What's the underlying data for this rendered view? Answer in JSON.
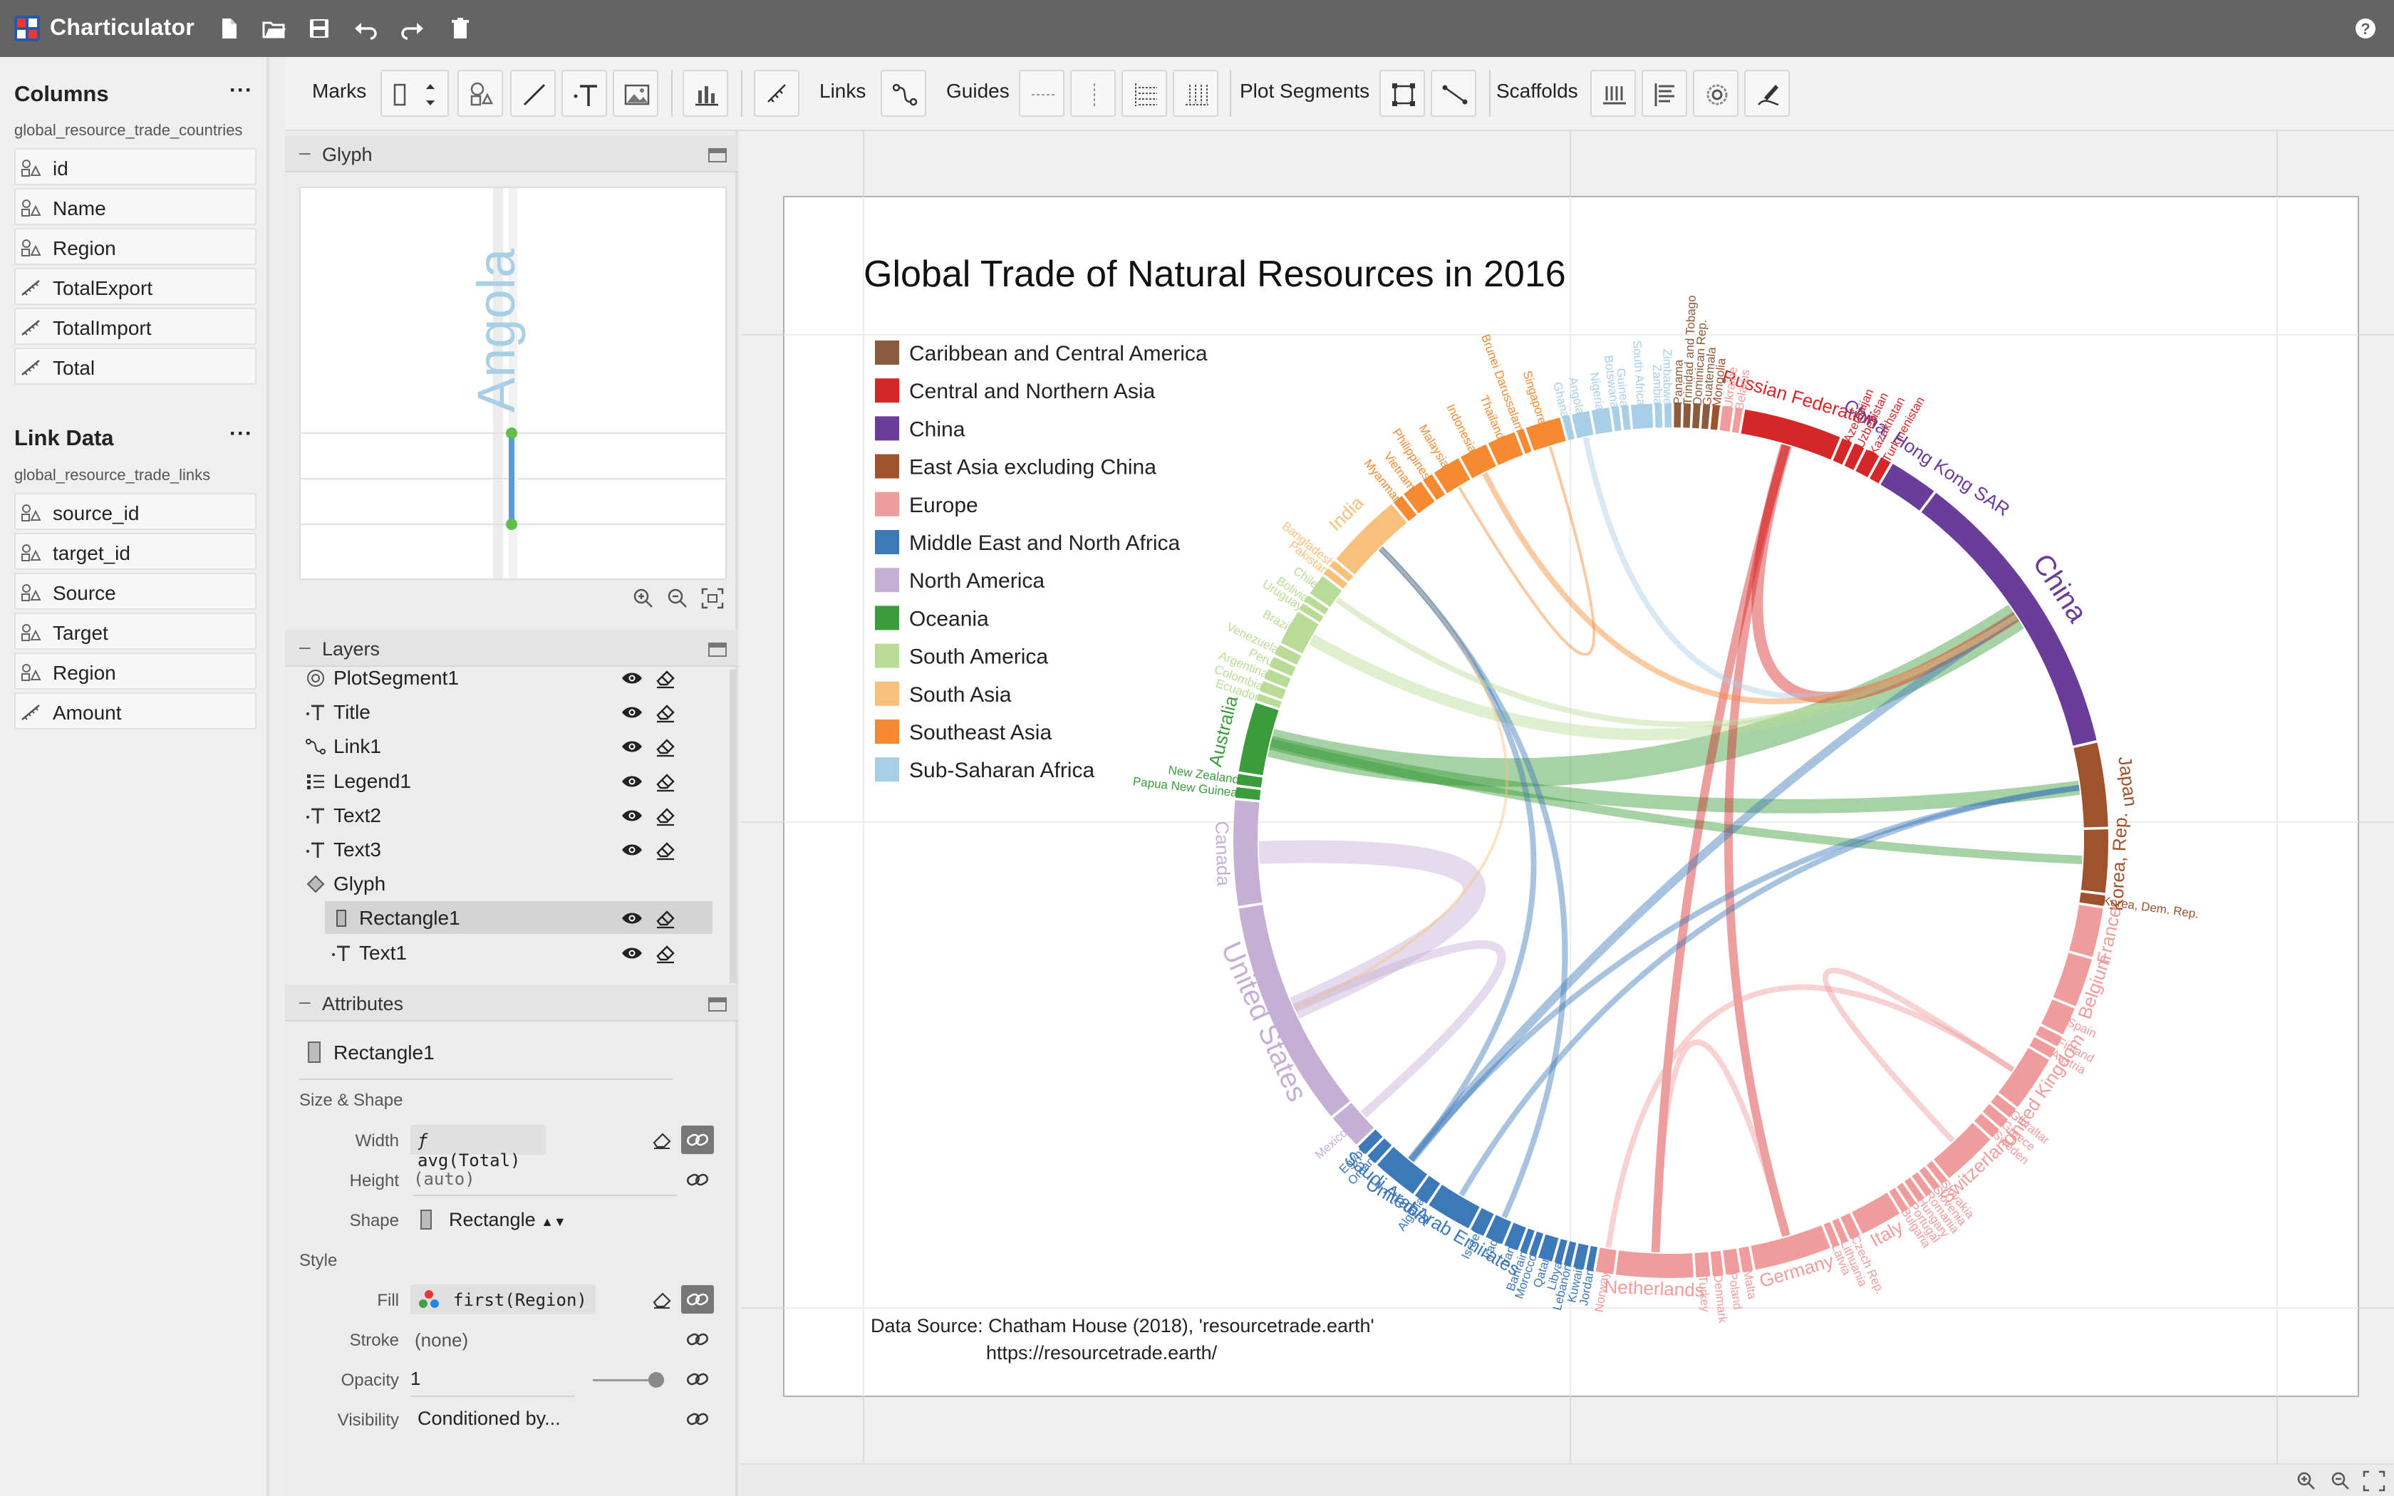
{
  "app": {
    "title": "Charticulator"
  },
  "toolbar": {
    "marks_label": "Marks",
    "links_label": "Links",
    "guides_label": "Guides",
    "plot_segments_label": "Plot Segments",
    "scaffolds_label": "Scaffolds"
  },
  "columns_panel": {
    "title": "Columns",
    "menu": "···",
    "table_name": "global_resource_trade_countries",
    "fields": [
      {
        "name": "id",
        "kind": "categorical"
      },
      {
        "name": "Name",
        "kind": "categorical"
      },
      {
        "name": "Region",
        "kind": "categorical"
      },
      {
        "name": "TotalExport",
        "kind": "numerical"
      },
      {
        "name": "TotalImport",
        "kind": "numerical"
      },
      {
        "name": "Total",
        "kind": "numerical"
      }
    ]
  },
  "link_panel": {
    "title": "Link Data",
    "menu": "···",
    "table_name": "global_resource_trade_links",
    "fields": [
      {
        "name": "source_id",
        "kind": "categorical"
      },
      {
        "name": "target_id",
        "kind": "categorical"
      },
      {
        "name": "Source",
        "kind": "categorical"
      },
      {
        "name": "Target",
        "kind": "categorical"
      },
      {
        "name": "Region",
        "kind": "categorical"
      },
      {
        "name": "Amount",
        "kind": "numerical"
      }
    ]
  },
  "glyph_panel": {
    "title": "Glyph",
    "preview_text": "Angola"
  },
  "layers_panel": {
    "title": "Layers",
    "items": [
      {
        "name": "PlotSegment1",
        "icon": "plot-segment-icon"
      },
      {
        "name": "Title",
        "icon": "text-icon"
      },
      {
        "name": "Link1",
        "icon": "link-icon"
      },
      {
        "name": "Legend1",
        "icon": "legend-icon"
      },
      {
        "name": "Text2",
        "icon": "text-icon"
      },
      {
        "name": "Text3",
        "icon": "text-icon"
      },
      {
        "name": "Glyph",
        "icon": "glyph-icon"
      },
      {
        "name": "Rectangle1",
        "icon": "rectangle-icon",
        "selected": true
      },
      {
        "name": "Text1",
        "icon": "text-icon"
      }
    ]
  },
  "attributes_panel": {
    "title": "Attributes",
    "object": "Rectangle1",
    "size_shape_label": "Size & Shape",
    "width_label": "Width",
    "width_value": "avg(Total)",
    "height_label": "Height",
    "height_value": "(auto)",
    "shape_label": "Shape",
    "shape_value": "Rectangle",
    "style_label": "Style",
    "fill_label": "Fill",
    "fill_value": "first(Region)",
    "stroke_label": "Stroke",
    "stroke_value": "(none)",
    "opacity_label": "Opacity",
    "opacity_value": "1",
    "visibility_label": "Visibility",
    "visibility_value": "Conditioned by..."
  },
  "chart": {
    "title": "Global Trade of Natural Resources in 2016",
    "source_line1": "Data Source: Chatham House (2018), 'resourcetrade.earth'",
    "source_line2": "https://resourcetrade.earth/"
  },
  "chart_data": {
    "type": "chord",
    "title": "Global Trade of Natural Resources in 2016",
    "legend": [
      {
        "name": "Caribbean and Central America",
        "color": "#8c5a3c"
      },
      {
        "name": "Central and Northern Asia",
        "color": "#d62728"
      },
      {
        "name": "China",
        "color": "#6a3d9a"
      },
      {
        "name": "East Asia excluding China",
        "color": "#a0522d"
      },
      {
        "name": "Europe",
        "color": "#f09c9c"
      },
      {
        "name": "Middle East and North Africa",
        "color": "#3d79b8"
      },
      {
        "name": "North America",
        "color": "#c5b0d5"
      },
      {
        "name": "Oceania",
        "color": "#3a9c3a"
      },
      {
        "name": "South America",
        "color": "#b8dc96"
      },
      {
        "name": "South Asia",
        "color": "#f9c07c"
      },
      {
        "name": "Southeast Asia",
        "color": "#f58a32"
      },
      {
        "name": "Sub-Saharan Africa",
        "color": "#a9cfe6"
      }
    ],
    "nodes": [
      {
        "name": "Russian Federation",
        "region": "Central and Northern Asia",
        "size": 2.8
      },
      {
        "name": "Azerbaijan",
        "region": "Central and Northern Asia",
        "size": 0.3
      },
      {
        "name": "Uzbekistan",
        "region": "Central and Northern Asia",
        "size": 0.3
      },
      {
        "name": "Kazakhstan",
        "region": "Central and Northern Asia",
        "size": 0.4
      },
      {
        "name": "Turkmenistan",
        "region": "Central and Northern Asia",
        "size": 0.3
      },
      {
        "name": "China, Hong Kong SAR",
        "region": "China",
        "size": 1.4
      },
      {
        "name": "China",
        "region": "China",
        "size": 8.5
      },
      {
        "name": "Japan",
        "region": "East Asia excluding China",
        "size": 2.4
      },
      {
        "name": "Korea, Rep.",
        "region": "East Asia excluding China",
        "size": 1.8
      },
      {
        "name": "Korea, Dem. Rep.",
        "region": "East Asia excluding China",
        "size": 0.3
      },
      {
        "name": "France",
        "region": "Europe",
        "size": 1.4
      },
      {
        "name": "Belgium",
        "region": "Europe",
        "size": 1.4
      },
      {
        "name": "Spain",
        "region": "Europe",
        "size": 0.8
      },
      {
        "name": "Finland",
        "region": "Europe",
        "size": 0.3
      },
      {
        "name": "Austria",
        "region": "Europe",
        "size": 0.3
      },
      {
        "name": "United Kingdom",
        "region": "Europe",
        "size": 1.6
      },
      {
        "name": "Gibraltar",
        "region": "Europe",
        "size": 0.3
      },
      {
        "name": "Greece",
        "region": "Europe",
        "size": 0.3
      },
      {
        "name": "Sweden",
        "region": "Europe",
        "size": 0.3
      },
      {
        "name": "Switzerland",
        "region": "Europe",
        "size": 1.6
      },
      {
        "name": "Slovakia",
        "region": "Europe",
        "size": 0.2
      },
      {
        "name": "Slovenia",
        "region": "Europe",
        "size": 0.2
      },
      {
        "name": "Romania",
        "region": "Europe",
        "size": 0.2
      },
      {
        "name": "Hungary",
        "region": "Europe",
        "size": 0.2
      },
      {
        "name": "Portugal",
        "region": "Europe",
        "size": 0.2
      },
      {
        "name": "Bulgaria",
        "region": "Europe",
        "size": 0.2
      },
      {
        "name": "Italy",
        "region": "Europe",
        "size": 1.2
      },
      {
        "name": "Czech Rep.",
        "region": "Europe",
        "size": 0.3
      },
      {
        "name": "Lithuania",
        "region": "Europe",
        "size": 0.2
      },
      {
        "name": "Latvia",
        "region": "Europe",
        "size": 0.2
      },
      {
        "name": "Germany",
        "region": "Europe",
        "size": 2.2
      },
      {
        "name": "Malta",
        "region": "Europe",
        "size": 0.3
      },
      {
        "name": "Poland",
        "region": "Europe",
        "size": 0.4
      },
      {
        "name": "Denmark",
        "region": "Europe",
        "size": 0.3
      },
      {
        "name": "Turkey",
        "region": "Europe",
        "size": 0.4
      },
      {
        "name": "Netherlands",
        "region": "Europe",
        "size": 2.2
      },
      {
        "name": "Norway",
        "region": "Europe",
        "size": 0.5
      },
      {
        "name": "Jordan",
        "region": "Middle East and North Africa",
        "size": 0.2
      },
      {
        "name": "Kuwait",
        "region": "Middle East and North Africa",
        "size": 0.3
      },
      {
        "name": "Lebanon",
        "region": "Middle East and North Africa",
        "size": 0.2
      },
      {
        "name": "Libya",
        "region": "Middle East and North Africa",
        "size": 0.2
      },
      {
        "name": "Qatar",
        "region": "Middle East and North Africa",
        "size": 0.4
      },
      {
        "name": "Morocco",
        "region": "Middle East and North Africa",
        "size": 0.2
      },
      {
        "name": "Bahrain",
        "region": "Middle East and North Africa",
        "size": 0.2
      },
      {
        "name": "Iran",
        "region": "Middle East and North Africa",
        "size": 0.4
      },
      {
        "name": "Iraq",
        "region": "Middle East and North Africa",
        "size": 0.5
      },
      {
        "name": "Israel",
        "region": "Middle East and North Africa",
        "size": 0.4
      },
      {
        "name": "United Arab Emirates",
        "region": "Middle East and North Africa",
        "size": 1.3
      },
      {
        "name": "Algeria",
        "region": "Middle East and North Africa",
        "size": 0.4
      },
      {
        "name": "Saudi Arabia",
        "region": "Middle East and North Africa",
        "size": 1.3
      },
      {
        "name": "Oman",
        "region": "Middle East and North Africa",
        "size": 0.3
      },
      {
        "name": "Egypt",
        "region": "Middle East and North Africa",
        "size": 0.3
      },
      {
        "name": "Mexico",
        "region": "North America",
        "size": 1.0
      },
      {
        "name": "United States",
        "region": "North America",
        "size": 6.5
      },
      {
        "name": "Canada",
        "region": "North America",
        "size": 3.0
      },
      {
        "name": "Papua New Guinea",
        "region": "Oceania",
        "size": 0.3
      },
      {
        "name": "New Zealand",
        "region": "Oceania",
        "size": 0.3
      },
      {
        "name": "Australia",
        "region": "Oceania",
        "size": 2.0
      },
      {
        "name": "Ecuador",
        "region": "South America",
        "size": 0.2
      },
      {
        "name": "Colombia",
        "region": "South America",
        "size": 0.3
      },
      {
        "name": "Argentina",
        "region": "South America",
        "size": 0.3
      },
      {
        "name": "Peru",
        "region": "South America",
        "size": 0.3
      },
      {
        "name": "Venezuela",
        "region": "South America",
        "size": 0.3
      },
      {
        "name": "Brazil",
        "region": "South America",
        "size": 1.0
      },
      {
        "name": "Uruguay",
        "region": "South America",
        "size": 0.2
      },
      {
        "name": "Bolivia",
        "region": "South America",
        "size": 0.2
      },
      {
        "name": "Chile",
        "region": "South America",
        "size": 0.6
      },
      {
        "name": "Pakistan",
        "region": "South Asia",
        "size": 0.2
      },
      {
        "name": "Bangladesh",
        "region": "South Asia",
        "size": 0.2
      },
      {
        "name": "India",
        "region": "South Asia",
        "size": 2.2
      },
      {
        "name": "Myanmar",
        "region": "Southeast Asia",
        "size": 0.3
      },
      {
        "name": "Vietnam",
        "region": "Southeast Asia",
        "size": 0.6
      },
      {
        "name": "Philippines",
        "region": "Southeast Asia",
        "size": 0.3
      },
      {
        "name": "Malaysia",
        "region": "Southeast Asia",
        "size": 0.8
      },
      {
        "name": "Indonesia",
        "region": "Southeast Asia",
        "size": 0.8
      },
      {
        "name": "Thailand",
        "region": "Southeast Asia",
        "size": 0.8
      },
      {
        "name": "Brunei Darussalam",
        "region": "Southeast Asia",
        "size": 0.2
      },
      {
        "name": "Singapore",
        "region": "Southeast Asia",
        "size": 1.0
      },
      {
        "name": "Ghana",
        "region": "Sub-Saharan Africa",
        "size": 0.2
      },
      {
        "name": "Angola",
        "region": "Sub-Saharan Africa",
        "size": 0.5
      },
      {
        "name": "Nigeria",
        "region": "Sub-Saharan Africa",
        "size": 0.5
      },
      {
        "name": "Botswana",
        "region": "Sub-Saharan Africa",
        "size": 0.2
      },
      {
        "name": "Guinea",
        "region": "Sub-Saharan Africa",
        "size": 0.2
      },
      {
        "name": "South Africa",
        "region": "Sub-Saharan Africa",
        "size": 0.6
      },
      {
        "name": "Zambia",
        "region": "Sub-Saharan Africa",
        "size": 0.2
      },
      {
        "name": "Zimbabwe",
        "region": "Sub-Saharan Africa",
        "size": 0.2
      },
      {
        "name": "Panama",
        "region": "Caribbean and Central America",
        "size": 0.2
      },
      {
        "name": "Trinidad and Tobago",
        "region": "Caribbean and Central America",
        "size": 0.2
      },
      {
        "name": "Dominican Rep.",
        "region": "Caribbean and Central America",
        "size": 0.2
      },
      {
        "name": "Guatemala",
        "region": "Caribbean and Central America",
        "size": 0.2
      },
      {
        "name": "Mongolia",
        "region": "East Asia excluding China",
        "size": 0.2
      },
      {
        "name": "Ukraine",
        "region": "Europe",
        "size": 0.3
      },
      {
        "name": "Belarus",
        "region": "Europe",
        "size": 0.2
      }
    ],
    "links": [
      {
        "source": "Australia",
        "target": "China",
        "amount": 10
      },
      {
        "source": "Australia",
        "target": "Japan",
        "amount": 5
      },
      {
        "source": "Australia",
        "target": "Korea, Rep.",
        "amount": 3
      },
      {
        "source": "Brazil",
        "target": "China",
        "amount": 4
      },
      {
        "source": "Canada",
        "target": "United States",
        "amount": 8
      },
      {
        "source": "Mexico",
        "target": "United States",
        "amount": 3
      },
      {
        "source": "Russian Federation",
        "target": "China",
        "amount": 4
      },
      {
        "source": "Russian Federation",
        "target": "Germany",
        "amount": 3
      },
      {
        "source": "Russian Federation",
        "target": "Netherlands",
        "amount": 3
      },
      {
        "source": "Saudi Arabia",
        "target": "China",
        "amount": 3
      },
      {
        "source": "Saudi Arabia",
        "target": "Japan",
        "amount": 2
      },
      {
        "source": "Saudi Arabia",
        "target": "India",
        "amount": 2
      },
      {
        "source": "United Arab Emirates",
        "target": "Japan",
        "amount": 2
      },
      {
        "source": "Iraq",
        "target": "India",
        "amount": 2
      },
      {
        "source": "Chile",
        "target": "China",
        "amount": 2
      },
      {
        "source": "Angola",
        "target": "China",
        "amount": 2
      },
      {
        "source": "Indonesia",
        "target": "China",
        "amount": 2
      },
      {
        "source": "Malaysia",
        "target": "Singapore",
        "amount": 1
      },
      {
        "source": "India",
        "target": "United States",
        "amount": 1
      },
      {
        "source": "Netherlands",
        "target": "Germany",
        "amount": 2
      },
      {
        "source": "Norway",
        "target": "United Kingdom",
        "amount": 2
      },
      {
        "source": "Switzerland",
        "target": "United Kingdom",
        "amount": 2
      }
    ]
  }
}
